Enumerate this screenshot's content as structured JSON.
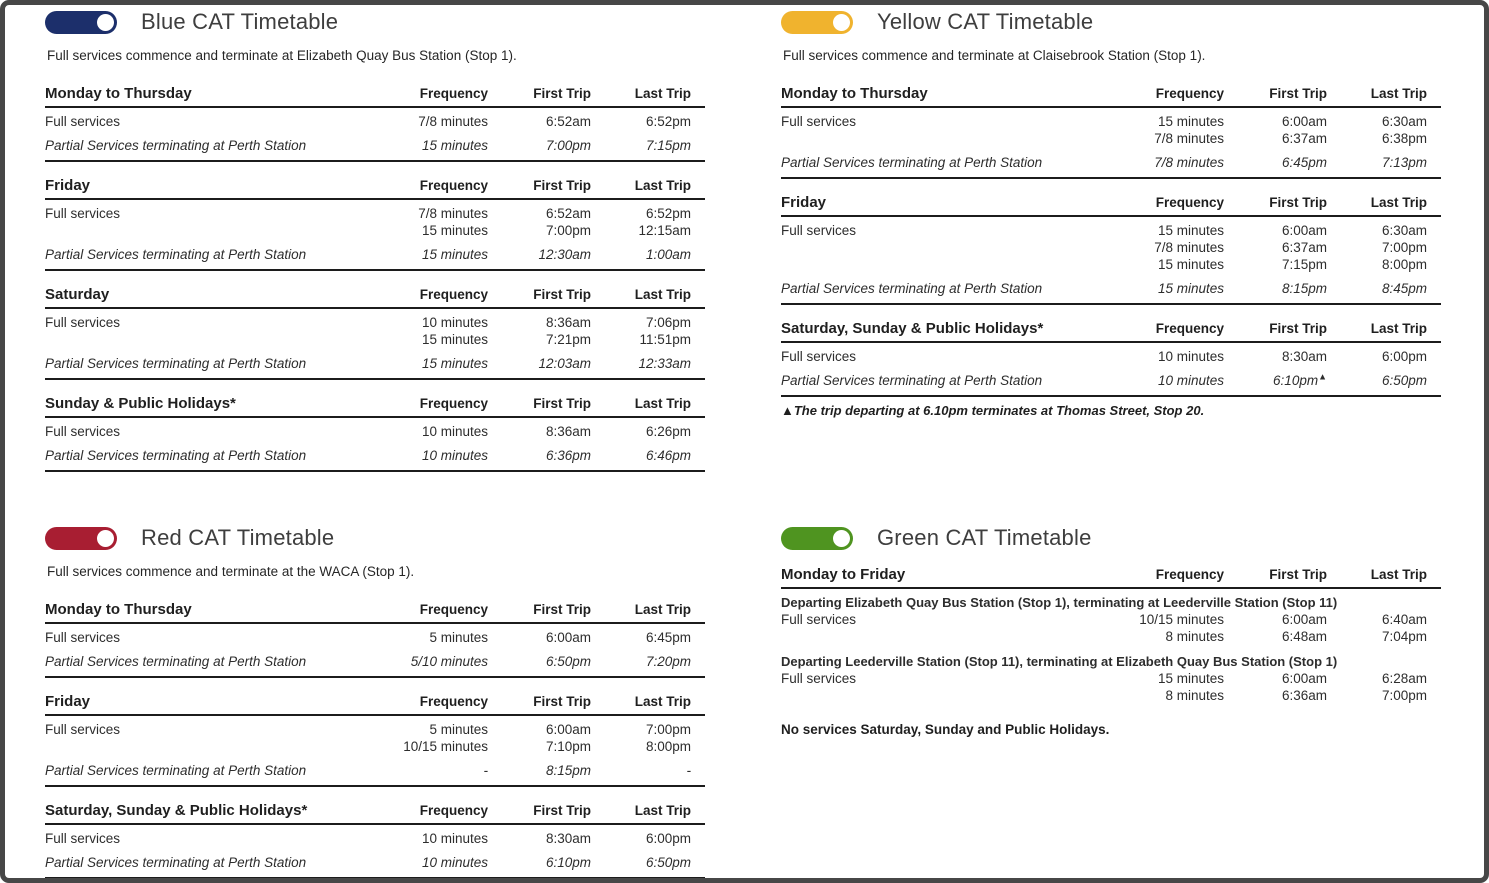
{
  "page": {
    "border_color": "#474747",
    "background": "#ffffff"
  },
  "timetables": [
    {
      "key": "blue",
      "title": "Blue CAT Timetable",
      "accent": "#1c2f6b",
      "intro": "Full services commence and terminate at Elizabeth Quay Bus Station (Stop 1).",
      "columns": [
        "Frequency",
        "First Trip",
        "Last Trip"
      ],
      "sections": [
        {
          "day": "Monday to Thursday",
          "rows": [
            {
              "type": "service",
              "label": "Full services",
              "lines": [
                [
                  "7/8 minutes",
                  "6:52am",
                  "6:52pm"
                ]
              ]
            },
            {
              "type": "partial",
              "label": "Partial Services terminating at Perth Station",
              "lines": [
                [
                  "15 minutes",
                  "7:00pm",
                  "7:15pm"
                ]
              ]
            }
          ]
        },
        {
          "day": "Friday",
          "rows": [
            {
              "type": "service",
              "label": "Full services",
              "lines": [
                [
                  "7/8 minutes",
                  "6:52am",
                  "6:52pm"
                ],
                [
                  "15 minutes",
                  "7:00pm",
                  "12:15am"
                ]
              ]
            },
            {
              "type": "partial",
              "label": "Partial Services terminating at Perth Station",
              "lines": [
                [
                  "15 minutes",
                  "12:30am",
                  "1:00am"
                ]
              ]
            }
          ]
        },
        {
          "day": "Saturday",
          "rows": [
            {
              "type": "service",
              "label": "Full services",
              "lines": [
                [
                  "10 minutes",
                  "8:36am",
                  "7:06pm"
                ],
                [
                  "15 minutes",
                  "7:21pm",
                  "11:51pm"
                ]
              ]
            },
            {
              "type": "partial",
              "label": "Partial Services terminating at Perth Station",
              "lines": [
                [
                  "15 minutes",
                  "12:03am",
                  "12:33am"
                ]
              ]
            }
          ]
        },
        {
          "day": "Sunday & Public Holidays*",
          "rows": [
            {
              "type": "service",
              "label": "Full services",
              "lines": [
                [
                  "10 minutes",
                  "8:36am",
                  "6:26pm"
                ]
              ]
            },
            {
              "type": "partial",
              "label": "Partial Services terminating at Perth Station",
              "lines": [
                [
                  "10 minutes",
                  "6:36pm",
                  "6:46pm"
                ]
              ]
            }
          ]
        }
      ]
    },
    {
      "key": "yellow",
      "title": "Yellow CAT Timetable",
      "accent": "#f0b32e",
      "intro": "Full services commence and terminate at Claisebrook Station (Stop 1).",
      "columns": [
        "Frequency",
        "First Trip",
        "Last Trip"
      ],
      "footnote": "▲The trip departing at 6.10pm terminates at Thomas Street, Stop 20.",
      "sections": [
        {
          "day": "Monday to Thursday",
          "rows": [
            {
              "type": "service",
              "label": "Full services",
              "lines": [
                [
                  "15 minutes",
                  "6:00am",
                  "6:30am"
                ],
                [
                  "7/8 minutes",
                  "6:37am",
                  "6:38pm"
                ]
              ]
            },
            {
              "type": "partial",
              "label": "Partial Services terminating at Perth Station",
              "lines": [
                [
                  "7/8 minutes",
                  "6:45pm",
                  "7:13pm"
                ]
              ]
            }
          ]
        },
        {
          "day": "Friday",
          "rows": [
            {
              "type": "service",
              "label": "Full services",
              "lines": [
                [
                  "15 minutes",
                  "6:00am",
                  "6:30am"
                ],
                [
                  "7/8 minutes",
                  "6:37am",
                  "7:00pm"
                ],
                [
                  "15 minutes",
                  "7:15pm",
                  "8:00pm"
                ]
              ]
            },
            {
              "type": "partial",
              "label": "Partial Services terminating at Perth Station",
              "lines": [
                [
                  "15 minutes",
                  "8:15pm",
                  "8:45pm"
                ]
              ]
            }
          ]
        },
        {
          "day": "Saturday, Sunday & Public Holidays*",
          "rows": [
            {
              "type": "service",
              "label": "Full services",
              "lines": [
                [
                  "10 minutes",
                  "8:30am",
                  "6:00pm"
                ]
              ]
            },
            {
              "type": "partial",
              "label": "Partial Services terminating at Perth Station",
              "lines": [
                [
                  "10 minutes",
                  "6:10pm▲",
                  "6:50pm"
                ]
              ]
            }
          ]
        }
      ]
    },
    {
      "key": "red",
      "title": "Red CAT Timetable",
      "accent": "#a81e32",
      "intro": "Full services commence and terminate at the WACA (Stop 1).",
      "columns": [
        "Frequency",
        "First Trip",
        "Last Trip"
      ],
      "sections": [
        {
          "day": "Monday to Thursday",
          "rows": [
            {
              "type": "service",
              "label": "Full services",
              "lines": [
                [
                  "5 minutes",
                  "6:00am",
                  "6:45pm"
                ]
              ]
            },
            {
              "type": "partial",
              "label": "Partial Services terminating at Perth Station",
              "lines": [
                [
                  "5/10 minutes",
                  "6:50pm",
                  "7:20pm"
                ]
              ]
            }
          ]
        },
        {
          "day": "Friday",
          "rows": [
            {
              "type": "service",
              "label": "Full services",
              "lines": [
                [
                  "5 minutes",
                  "6:00am",
                  "7:00pm"
                ],
                [
                  "10/15 minutes",
                  "7:10pm",
                  "8:00pm"
                ]
              ]
            },
            {
              "type": "partial",
              "label": "Partial Services terminating at Perth Station",
              "lines": [
                [
                  "-",
                  "8:15pm",
                  "-"
                ]
              ]
            }
          ]
        },
        {
          "day": "Saturday, Sunday & Public Holidays*",
          "rows": [
            {
              "type": "service",
              "label": "Full services",
              "lines": [
                [
                  "10 minutes",
                  "8:30am",
                  "6:00pm"
                ]
              ]
            },
            {
              "type": "partial",
              "label": "Partial Services terminating at Perth Station",
              "lines": [
                [
                  "10 minutes",
                  "6:10pm",
                  "6:50pm"
                ]
              ]
            }
          ]
        }
      ]
    },
    {
      "key": "green",
      "title": "Green CAT Timetable",
      "accent": "#4f9420",
      "columns": [
        "Frequency",
        "First Trip",
        "Last Trip"
      ],
      "note": "No services Saturday, Sunday and Public Holidays.",
      "sections": [
        {
          "day": "Monday to Friday",
          "rows": [
            {
              "type": "subheading",
              "text": "Departing Elizabeth Quay Bus Station (Stop 1), terminating at Leederville Station (Stop 11)"
            },
            {
              "type": "service",
              "label": "Full services",
              "lines": [
                [
                  "10/15 minutes",
                  "6:00am",
                  "6:40am"
                ],
                [
                  "8 minutes",
                  "6:48am",
                  "7:04pm"
                ]
              ]
            },
            {
              "type": "subheading",
              "text": "Departing Leederville Station (Stop 11), terminating at Elizabeth Quay Bus Station (Stop 1)"
            },
            {
              "type": "service",
              "label": "Full services",
              "lines": [
                [
                  "15 minutes",
                  "6:00am",
                  "6:28am"
                ],
                [
                  "8 minutes",
                  "6:36am",
                  "7:00pm"
                ]
              ]
            }
          ]
        }
      ]
    }
  ]
}
